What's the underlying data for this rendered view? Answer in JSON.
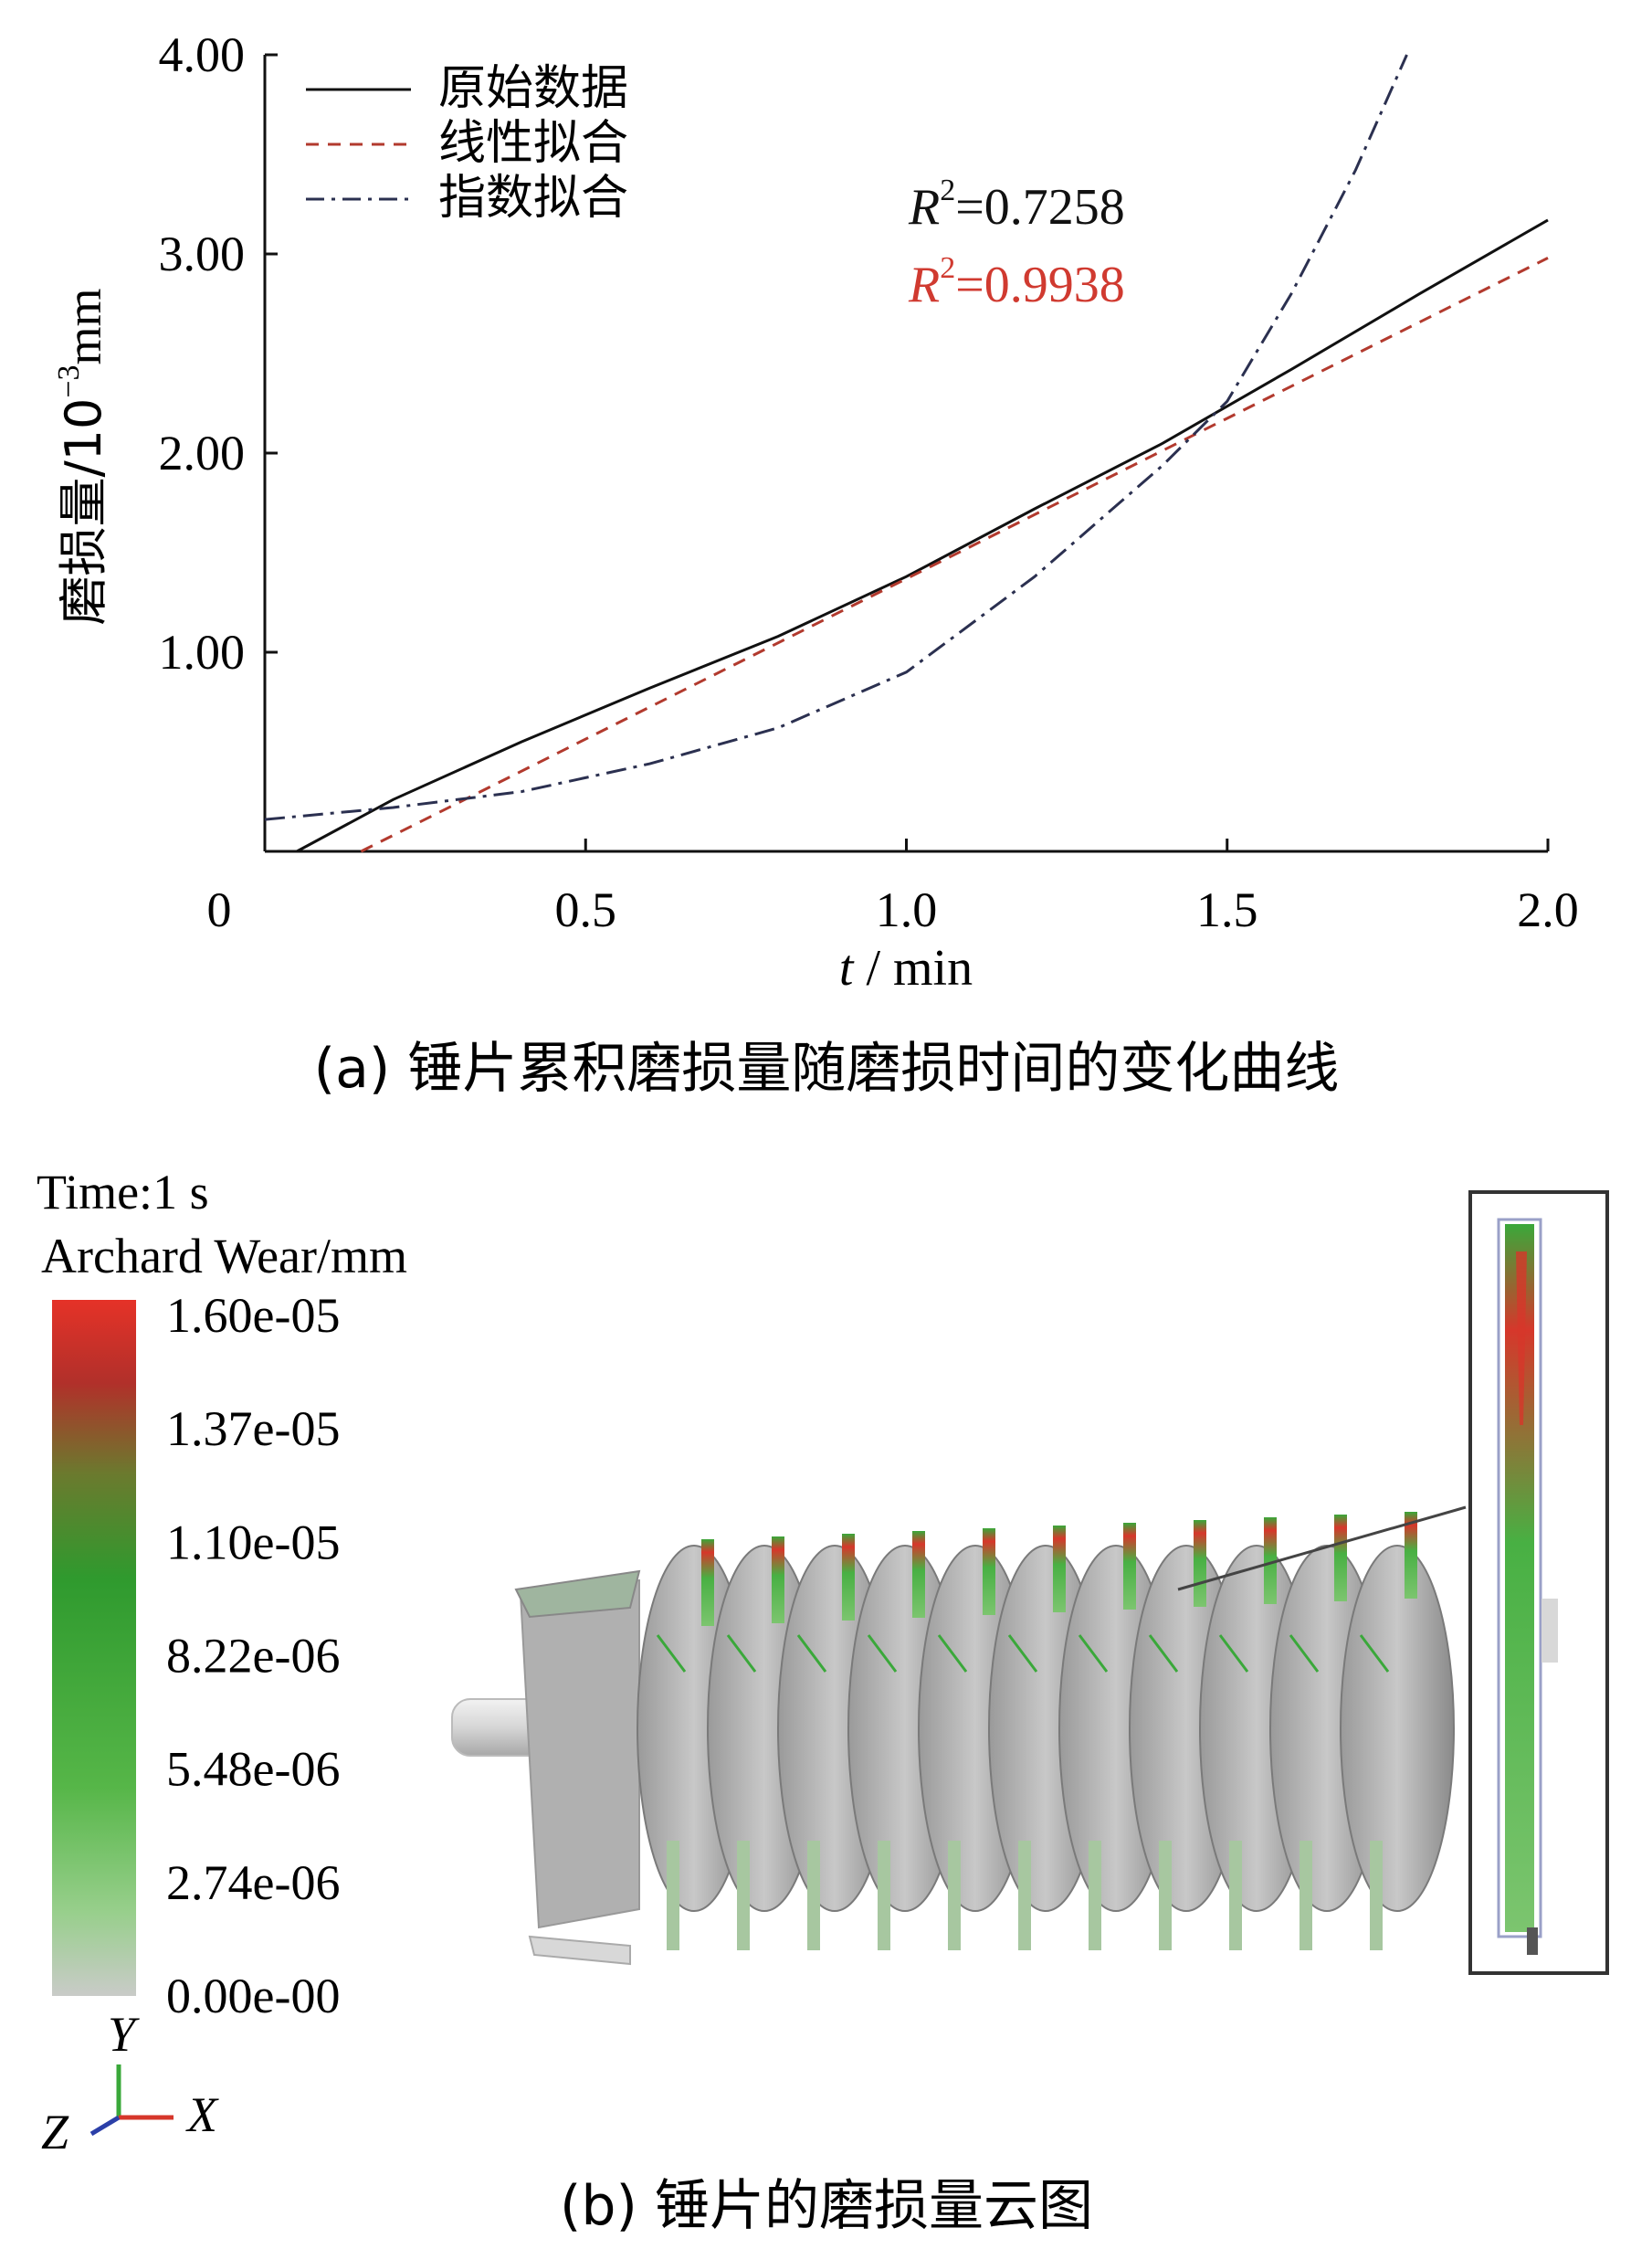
{
  "chart_data": [
    {
      "type": "line",
      "xlabel_var": "t",
      "xlabel_unit": " / min",
      "ylabel_main": "磨损量/10",
      "ylabel_exp": "−3",
      "ylabel_unit": "mm",
      "xlim": [
        0,
        2.0
      ],
      "ylim": [
        0,
        4.0
      ],
      "x_ticks": [
        "0",
        "0.5",
        "1.0",
        "1.5",
        "2.0"
      ],
      "x_tick_values": [
        0,
        0.5,
        1.0,
        1.5,
        2.0
      ],
      "y_ticks": [
        "1.00",
        "2.00",
        "3.00",
        "4.00"
      ],
      "y_tick_values": [
        1.0,
        2.0,
        3.0,
        4.0
      ],
      "grid": false,
      "legend_position": "top-left",
      "series": [
        {
          "name": "原始数据",
          "style": "solid",
          "color": "#111111",
          "x": [
            0.05,
            0.2,
            0.4,
            0.6,
            0.8,
            1.0,
            1.2,
            1.4,
            1.6,
            1.8,
            2.0
          ],
          "y": [
            0.0,
            0.26,
            0.55,
            0.82,
            1.08,
            1.38,
            1.72,
            2.05,
            2.42,
            2.8,
            3.17
          ]
        },
        {
          "name": "线性拟合",
          "style": "dashed",
          "color": "#b23a2e",
          "x": [
            0.15,
            2.0
          ],
          "y": [
            0.0,
            2.98
          ]
        },
        {
          "name": "指数拟合",
          "style": "dashdot",
          "color": "#2b3050",
          "x": [
            0.0,
            0.2,
            0.4,
            0.6,
            0.8,
            1.0,
            1.2,
            1.4,
            1.5,
            1.6,
            1.7,
            1.78
          ],
          "y": [
            0.16,
            0.22,
            0.3,
            0.44,
            0.62,
            0.9,
            1.38,
            1.94,
            2.26,
            2.8,
            3.42,
            4.0
          ]
        }
      ],
      "annotations": [
        {
          "prefix": "R",
          "sup": "2",
          "text": "=0.7258",
          "color": "#111111"
        },
        {
          "prefix": "R",
          "sup": "2",
          "text": "=0.9938",
          "color": "#d03a30"
        }
      ],
      "caption": "(a)  锤片累积磨损量随磨损时间的变化曲线"
    },
    {
      "type": "heatmap",
      "header_time": "Time:1 s",
      "header_quantity": "Archard Wear/mm",
      "scale_labels": [
        "1.60e-05",
        "1.37e-05",
        "1.10e-05",
        "8.22e-06",
        "5.48e-06",
        "2.74e-06",
        "0.00e-00"
      ],
      "colors": [
        "#e53228",
        "#2f9a2e",
        "#56b648",
        "#c9cbc8"
      ],
      "axes": [
        "Y",
        "X",
        "Z"
      ],
      "caption": "(b)  锤片的磨损量云图"
    }
  ]
}
